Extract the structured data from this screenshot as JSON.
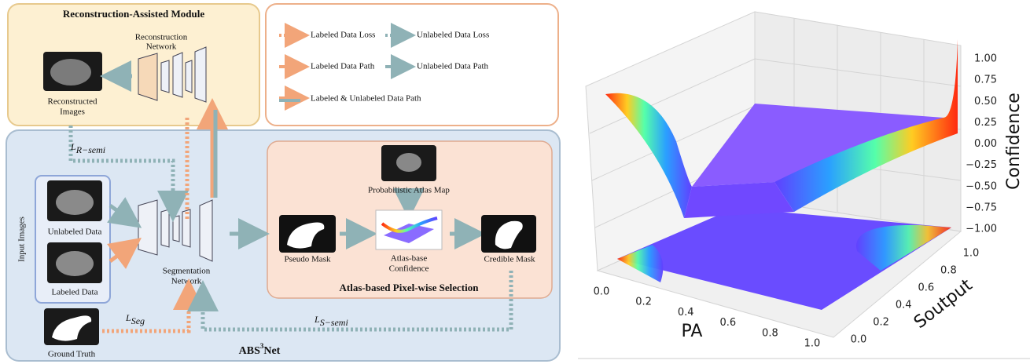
{
  "diagram": {
    "reconstruction_module": {
      "title": "Reconstruction-Assisted Module",
      "network": [
        "Reconstruction",
        "Network"
      ],
      "images": [
        "Reconstructed",
        "Images"
      ]
    },
    "legend": {
      "items": [
        "Labeled Data Loss",
        "Unlabeled Data Loss",
        "Labeled Data Path",
        "Unlabeled Data Path",
        "Labeled & Unlabeled Data Path"
      ]
    },
    "main": {
      "title": {
        "text": "ABS",
        "sup": "3",
        "rest": "Net"
      },
      "input_images": "Input Images",
      "unlabeled": "Unlabeled Data",
      "labeled": "Labeled Data",
      "segmentation": [
        "Segmentation",
        "Network"
      ],
      "ground_truth": "Ground Truth",
      "losses": [
        {
          "symbol": "L",
          "sub": "R−semi"
        },
        {
          "symbol": "L",
          "sub": "Seg"
        },
        {
          "symbol": "L",
          "sub": "S−semi"
        }
      ]
    },
    "atlas_module": {
      "title": "Atlas-based Pixel-wise Selection",
      "atlas_map": "Probabilistic Atlas Map",
      "pseudo_mask": "Pseudo Mask",
      "confidence": [
        "Atlas-base",
        "Confidence"
      ],
      "credible_mask": "Credible Mask"
    }
  },
  "surface_plot": {
    "x_label": "PA",
    "y_label": "Soutput",
    "z_label": "Confidence",
    "x_ticks": [
      "0.0",
      "0.2",
      "0.4",
      "0.6",
      "0.8",
      "1.0"
    ],
    "y_ticks": [
      "0.0",
      "0.2",
      "0.4",
      "0.6",
      "0.8",
      "1.0"
    ],
    "z_ticks": [
      "1.00",
      "0.75",
      "0.50",
      "0.25",
      "0.00",
      "−0.25",
      "−0.50",
      "−0.75",
      "−1.00"
    ]
  }
}
